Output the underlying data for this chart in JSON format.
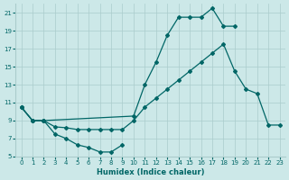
{
  "xlabel": "Humidex (Indice chaleur)",
  "background_color": "#cce8e8",
  "grid_color": "#aacccc",
  "line_color": "#006666",
  "xlim": [
    -0.5,
    23.5
  ],
  "ylim": [
    5,
    22
  ],
  "yticks": [
    5,
    7,
    9,
    11,
    13,
    15,
    17,
    19,
    21
  ],
  "xticks": [
    0,
    1,
    2,
    3,
    4,
    5,
    6,
    7,
    8,
    9,
    10,
    11,
    12,
    13,
    14,
    15,
    16,
    17,
    18,
    19,
    20,
    21,
    22,
    23
  ],
  "s1_x": [
    0,
    1,
    2,
    10,
    11,
    12,
    13,
    14,
    15,
    16,
    17,
    18,
    19
  ],
  "s1_y": [
    10.5,
    9.0,
    9.0,
    9.5,
    13.0,
    15.5,
    18.5,
    20.5,
    20.5,
    20.5,
    21.5,
    19.5,
    19.5
  ],
  "s2_x": [
    0,
    1,
    2,
    3,
    4,
    5,
    6,
    7,
    8,
    9
  ],
  "s2_y": [
    10.5,
    9.0,
    9.0,
    7.5,
    7.0,
    6.3,
    6.0,
    5.5,
    5.5,
    6.3
  ],
  "s3_x": [
    0,
    1,
    2,
    3,
    4,
    5,
    6,
    7,
    8,
    9,
    10,
    11,
    12,
    13,
    14,
    15,
    16,
    17,
    18,
    19,
    20,
    21,
    22,
    23
  ],
  "s3_y": [
    10.5,
    9.0,
    9.0,
    8.3,
    8.2,
    8.0,
    8.0,
    8.0,
    8.0,
    8.0,
    9.0,
    10.5,
    11.5,
    12.5,
    13.5,
    14.5,
    15.5,
    16.5,
    17.5,
    14.5,
    12.5,
    12.0,
    8.5,
    8.5
  ]
}
